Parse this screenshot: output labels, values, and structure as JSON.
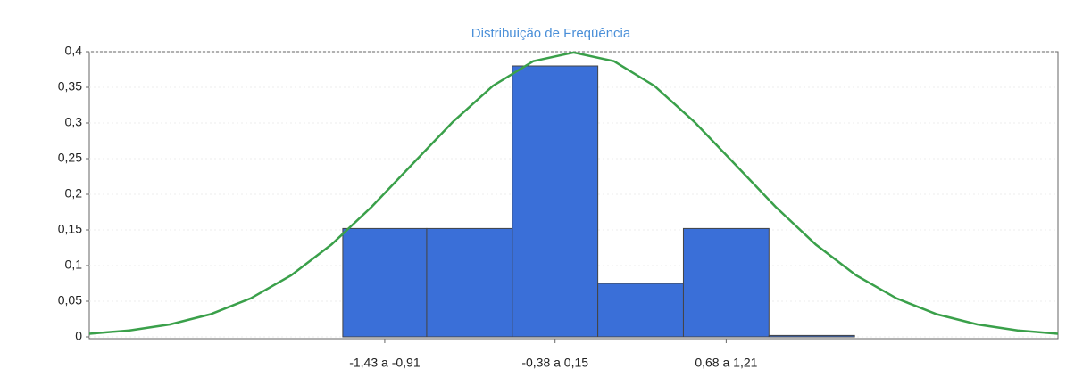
{
  "chart_data": {
    "type": "histogram",
    "title": "Distribuição de Freqüência",
    "bins": [
      -1.43,
      -0.91,
      -0.38,
      0.15,
      0.68,
      1.21,
      1.74
    ],
    "counts": [
      0.152,
      0.152,
      0.38,
      0.075,
      0.152,
      0.002
    ],
    "color": "#3a6fd8",
    "curve": {
      "color": "#3aa04a",
      "x": [
        -3,
        -2.75,
        -2.5,
        -2.25,
        -2,
        -1.75,
        -1.5,
        -1.25,
        -1,
        -0.75,
        -0.5,
        -0.25,
        0,
        0.25,
        0.5,
        0.75,
        1,
        1.25,
        1.5,
        1.75,
        2,
        2.25,
        2.5,
        2.75,
        3
      ],
      "values": [
        0.0044,
        0.0091,
        0.0175,
        0.0317,
        0.054,
        0.0863,
        0.1295,
        0.1826,
        0.242,
        0.3011,
        0.3521,
        0.3867,
        0.3989,
        0.3867,
        0.3521,
        0.3011,
        0.242,
        0.1826,
        0.1295,
        0.0863,
        0.054,
        0.0317,
        0.0175,
        0.0091,
        0.0044
      ]
    },
    "xlim": [
      -3,
      3
    ],
    "xticks": [
      {
        "value": -1.17,
        "label": "-1,43 a -0,91"
      },
      {
        "value": -0.115,
        "label": "-0,38 a 0,15"
      },
      {
        "value": 0.945,
        "label": "0,68 a 1,21"
      }
    ],
    "ylim": [
      0,
      0.4
    ],
    "yticks": [
      0,
      {
        "value": 0.05,
        "label": "0,05"
      },
      {
        "value": 0.1,
        "label": "0,1"
      },
      {
        "value": 0.15,
        "label": "0,15"
      },
      {
        "value": 0.2,
        "label": "0,2"
      },
      {
        "value": 0.25,
        "label": "0,25"
      },
      {
        "value": 0.3,
        "label": "0,3"
      },
      {
        "value": 0.35,
        "label": "0,35"
      },
      {
        "value": 0.4,
        "label": "0,4"
      }
    ],
    "grid": true
  }
}
